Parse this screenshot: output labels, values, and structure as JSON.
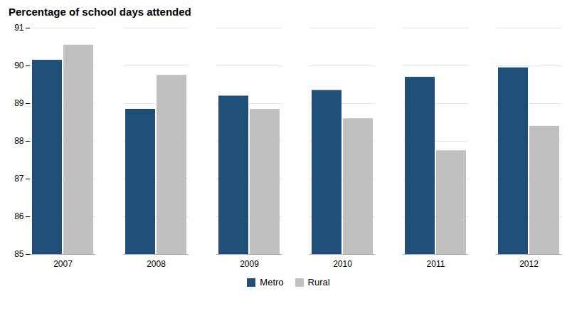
{
  "chart_data": {
    "type": "bar",
    "title": "Percentage of school days attended",
    "categories": [
      "2007",
      "2008",
      "2009",
      "2010",
      "2011",
      "2012"
    ],
    "series": [
      {
        "name": "Metro",
        "color": "#1F4E79",
        "values": [
          90.15,
          88.85,
          89.2,
          89.35,
          89.7,
          89.95
        ]
      },
      {
        "name": "Rural",
        "color": "#C0C0C0",
        "values": [
          90.55,
          89.75,
          88.85,
          88.6,
          87.75,
          88.4
        ]
      }
    ],
    "ylim": [
      85,
      91
    ],
    "yticks": [
      85,
      86,
      87,
      88,
      89,
      90,
      91
    ],
    "grid": true,
    "legend": "bottom"
  }
}
